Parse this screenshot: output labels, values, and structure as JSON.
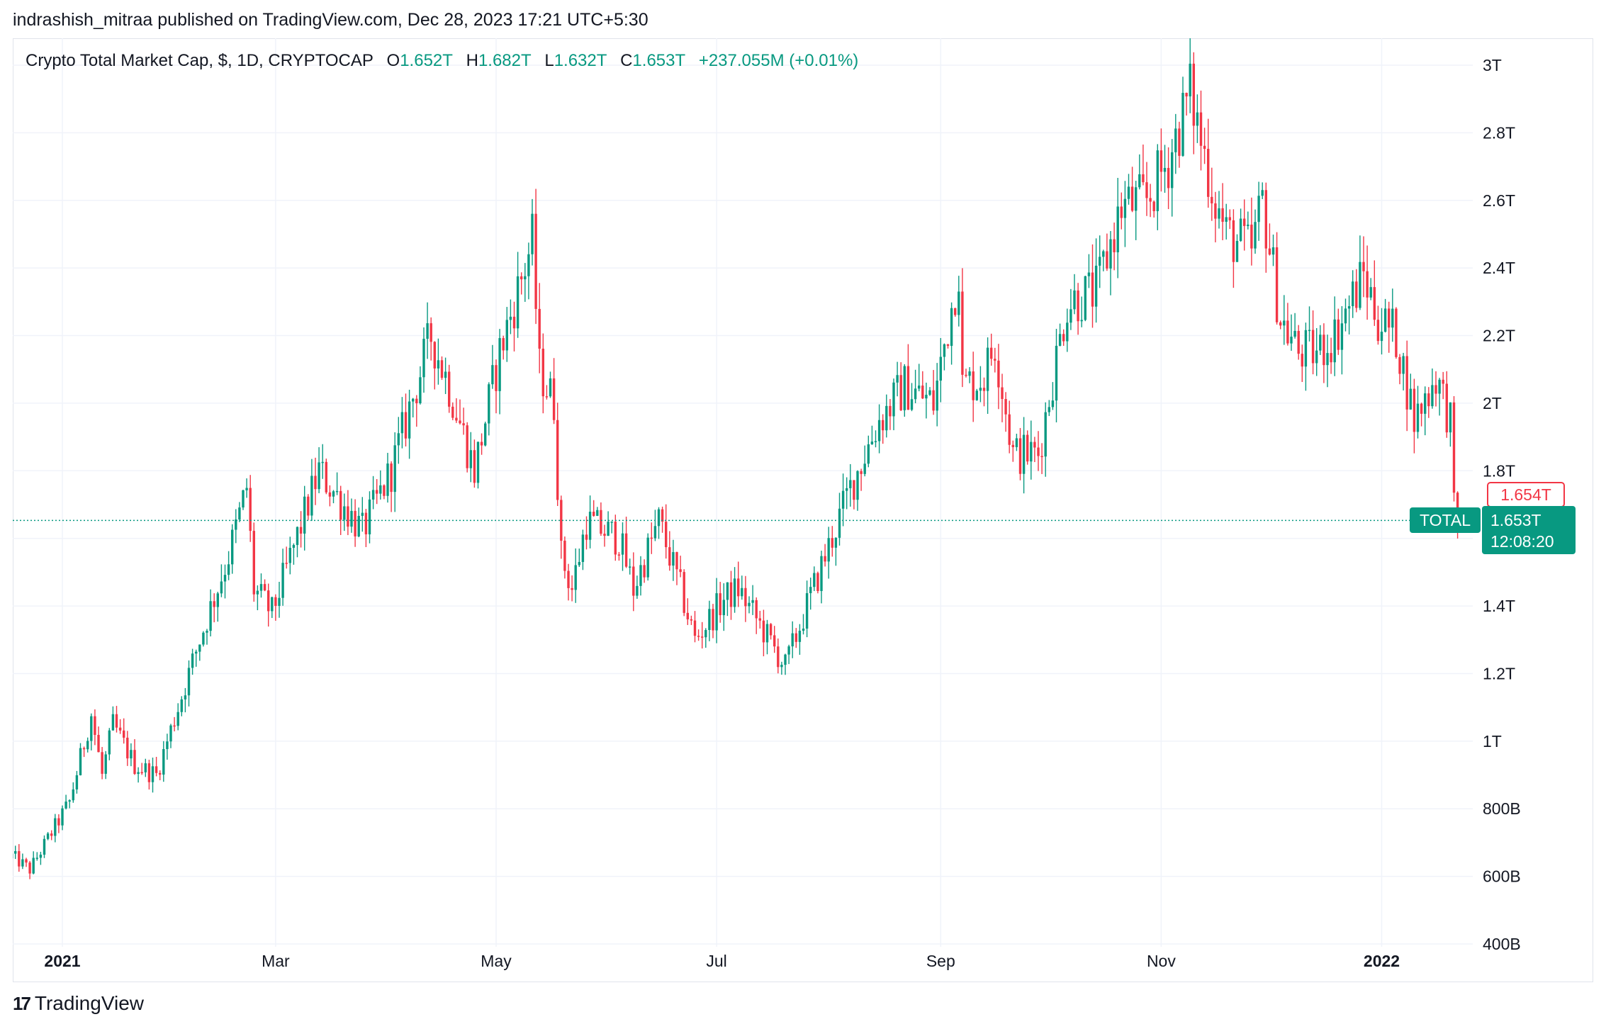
{
  "header": {
    "publish_text": "indrashish_mitraa published on TradingView.com, Dec 28, 2023 17:21 UTC+5:30"
  },
  "legend": {
    "symbol": "Crypto Total Market Cap, $, 1D, CRYPTOCAP",
    "open_label": "O",
    "open_value": "1.652T",
    "high_label": "H",
    "high_value": "1.682T",
    "low_label": "L",
    "low_value": "1.632T",
    "close_label": "C",
    "close_value": "1.653T",
    "change": "+237.055M (+0.01%)"
  },
  "price_axis": {
    "labels": [
      "3T",
      "2.8T",
      "2.6T",
      "2.4T",
      "2.2T",
      "2T",
      "1.8T",
      "1.4T",
      "1.2T",
      "1T",
      "800B",
      "600B",
      "400B"
    ],
    "values": [
      3000,
      2800,
      2600,
      2400,
      2200,
      2000,
      1800,
      1400,
      1200,
      1000,
      800,
      600,
      400
    ],
    "gridlines": [
      3000,
      2800,
      2600,
      2400,
      2200,
      2000,
      1800,
      1600,
      1400,
      1200,
      1000,
      800,
      600,
      400
    ]
  },
  "time_axis": {
    "labels": [
      "2021",
      "Mar",
      "May",
      "Jul",
      "Sep",
      "Nov",
      "2022"
    ],
    "positions_days": [
      0,
      59,
      120,
      181,
      243,
      304,
      365
    ],
    "bold": [
      true,
      false,
      false,
      false,
      false,
      false,
      true
    ]
  },
  "price_tags": {
    "high_tag": "1.654T",
    "symbol_tag": "TOTAL",
    "last_price": "1.653T",
    "countdown": "12:08:20"
  },
  "footer": {
    "logo_mark": "17",
    "brand": "TradingView"
  },
  "colors": {
    "up": "#089981",
    "down": "#f23645",
    "grid": "#f0f3fa",
    "text": "#131722"
  },
  "chart_data": {
    "type": "candlestick",
    "title": "Crypto Total Market Cap, $, 1D, CRYPTOCAP",
    "unit": "billion USD",
    "x_start": "2020-12-18",
    "x_end": "2022-01-22",
    "ylim": [
      400,
      3000
    ],
    "grid": true,
    "last_close": 1653,
    "keypoints": [
      {
        "date": "2020-12-18",
        "close": 660
      },
      {
        "date": "2020-12-23",
        "close": 620
      },
      {
        "date": "2021-01-03",
        "close": 820
      },
      {
        "date": "2021-01-09",
        "close": 1080
      },
      {
        "date": "2021-01-12",
        "close": 900
      },
      {
        "date": "2021-01-15",
        "close": 1050
      },
      {
        "date": "2021-01-21",
        "close": 930
      },
      {
        "date": "2021-01-27",
        "close": 900
      },
      {
        "date": "2021-02-08",
        "close": 1300
      },
      {
        "date": "2021-02-16",
        "close": 1550
      },
      {
        "date": "2021-02-21",
        "close": 1750
      },
      {
        "date": "2021-02-23",
        "close": 1450
      },
      {
        "date": "2021-02-28",
        "close": 1380
      },
      {
        "date": "2021-03-13",
        "close": 1800
      },
      {
        "date": "2021-03-25",
        "close": 1620
      },
      {
        "date": "2021-04-02",
        "close": 1800
      },
      {
        "date": "2021-04-13",
        "close": 2200
      },
      {
        "date": "2021-04-18",
        "close": 2050
      },
      {
        "date": "2021-04-25",
        "close": 1800
      },
      {
        "date": "2021-05-02",
        "close": 2150
      },
      {
        "date": "2021-05-11",
        "close": 2480
      },
      {
        "date": "2021-05-13",
        "close": 2100
      },
      {
        "date": "2021-05-17",
        "close": 2000
      },
      {
        "date": "2021-05-19",
        "close": 1550
      },
      {
        "date": "2021-05-22",
        "close": 1450
      },
      {
        "date": "2021-05-26",
        "close": 1650
      },
      {
        "date": "2021-06-04",
        "close": 1600
      },
      {
        "date": "2021-06-08",
        "close": 1450
      },
      {
        "date": "2021-06-15",
        "close": 1650
      },
      {
        "date": "2021-06-21",
        "close": 1450
      },
      {
        "date": "2021-06-25",
        "close": 1300
      },
      {
        "date": "2021-07-03",
        "close": 1420
      },
      {
        "date": "2021-07-07",
        "close": 1450
      },
      {
        "date": "2021-07-20",
        "close": 1220
      },
      {
        "date": "2021-07-26",
        "close": 1400
      },
      {
        "date": "2021-08-07",
        "close": 1750
      },
      {
        "date": "2021-08-15",
        "close": 1950
      },
      {
        "date": "2021-08-22",
        "close": 2050
      },
      {
        "date": "2021-08-30",
        "close": 2000
      },
      {
        "date": "2021-09-06",
        "close": 2400
      },
      {
        "date": "2021-09-07",
        "close": 2050
      },
      {
        "date": "2021-09-13",
        "close": 2080
      },
      {
        "date": "2021-09-16",
        "close": 2180
      },
      {
        "date": "2021-09-21",
        "close": 1850
      },
      {
        "date": "2021-09-28",
        "close": 1850
      },
      {
        "date": "2021-10-06",
        "close": 2300
      },
      {
        "date": "2021-10-14",
        "close": 2330
      },
      {
        "date": "2021-10-21",
        "close": 2580
      },
      {
        "date": "2021-10-28",
        "close": 2600
      },
      {
        "date": "2021-11-03",
        "close": 2720
      },
      {
        "date": "2021-11-09",
        "close": 2920
      },
      {
        "date": "2021-11-12",
        "close": 2780
      },
      {
        "date": "2021-11-16",
        "close": 2600
      },
      {
        "date": "2021-11-19",
        "close": 2500
      },
      {
        "date": "2021-11-26",
        "close": 2450
      },
      {
        "date": "2021-11-29",
        "close": 2600
      },
      {
        "date": "2021-12-04",
        "close": 2250
      },
      {
        "date": "2021-12-09",
        "close": 2150
      },
      {
        "date": "2021-12-14",
        "close": 2150
      },
      {
        "date": "2021-12-19",
        "close": 2200
      },
      {
        "date": "2021-12-27",
        "close": 2380
      },
      {
        "date": "2021-12-31",
        "close": 2250
      },
      {
        "date": "2022-01-05",
        "close": 2200
      },
      {
        "date": "2022-01-10",
        "close": 1950
      },
      {
        "date": "2022-01-16",
        "close": 2080
      },
      {
        "date": "2022-01-20",
        "close": 1950
      },
      {
        "date": "2022-01-21",
        "close": 1680
      },
      {
        "date": "2022-01-22",
        "close": 1653
      }
    ]
  }
}
